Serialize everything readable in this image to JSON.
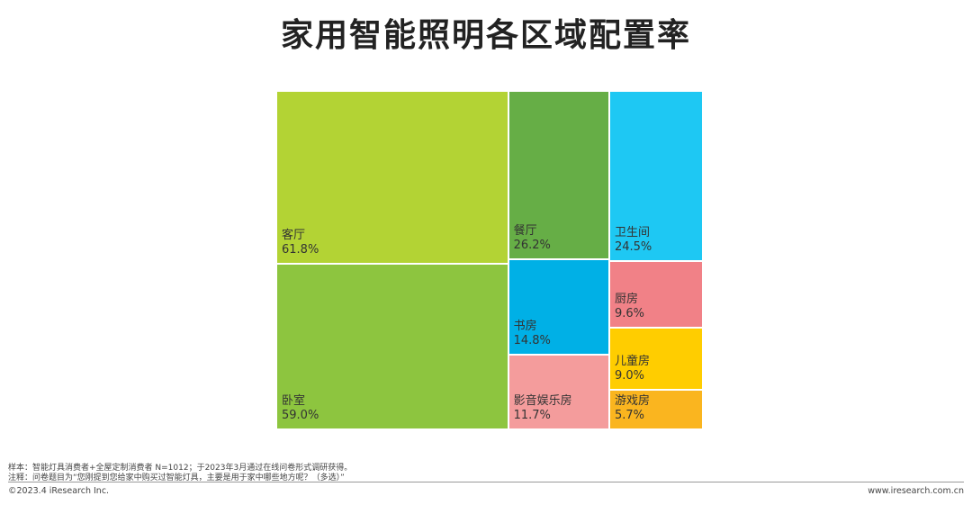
{
  "title": "家用智能照明各区域配置率",
  "chart_data": {
    "type": "treemap",
    "title": "家用智能照明各区域配置率",
    "unit": "%",
    "items": [
      {
        "name": "客厅",
        "value": 61.8,
        "label": "61.8%",
        "color": "#b3d334"
      },
      {
        "name": "卧室",
        "value": 59.0,
        "label": "59.0%",
        "color": "#8dc53f"
      },
      {
        "name": "餐厅",
        "value": 26.2,
        "label": "26.2%",
        "color": "#66ae46"
      },
      {
        "name": "书房",
        "value": 14.8,
        "label": "14.8%",
        "color": "#00b0e6"
      },
      {
        "name": "影音娱乐房",
        "value": 11.7,
        "label": "11.7%",
        "color": "#f49c9c"
      },
      {
        "name": "卫生间",
        "value": 24.5,
        "label": "24.5%",
        "color": "#1ec8f3"
      },
      {
        "name": "厨房",
        "value": 9.6,
        "label": "9.6%",
        "color": "#f18187"
      },
      {
        "name": "儿童房",
        "value": 9.0,
        "label": "9.0%",
        "color": "#ffcd00"
      },
      {
        "name": "游戏房",
        "value": 5.7,
        "label": "5.7%",
        "color": "#fab51f"
      }
    ]
  },
  "footer": {
    "sample": "样本：智能灯具消费者+全屋定制消费者 N=1012；于2023年3月通过在线问卷形式调研获得。",
    "note": "注释：问卷题目为“您刚提到您给家中购买过智能灯具，主要是用于家中哪些地方呢？（多选）”",
    "copyright": "©2023.4 iResearch Inc.",
    "site": "www.iresearch.com.cn"
  }
}
